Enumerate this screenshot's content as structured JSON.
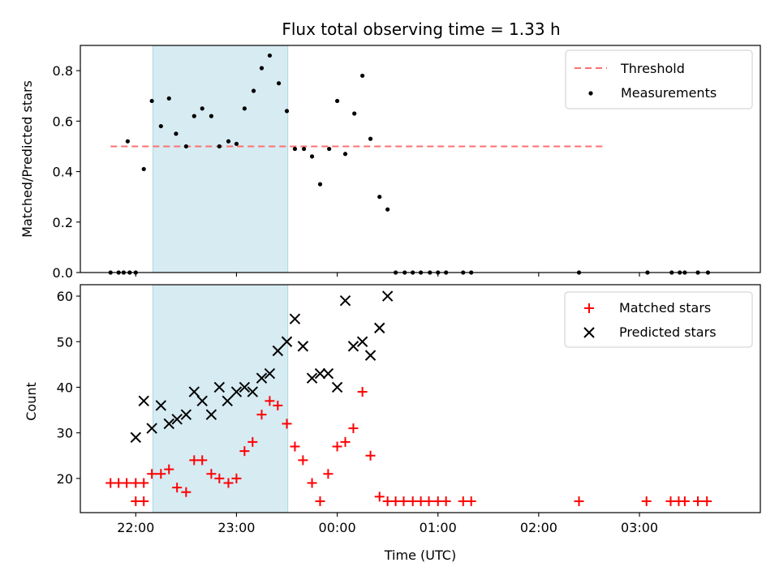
{
  "chart_data": [
    {
      "type": "scatter",
      "title": "Flux total observing time = 1.33 h",
      "ylabel": "Matched/Predicted stars",
      "ylim": [
        0,
        0.9
      ],
      "xlim": [
        21.45,
        28.2
      ],
      "x_ticks": [
        22,
        23,
        24,
        25,
        26,
        27
      ],
      "x_tick_labels": [
        "",
        "",
        "",
        "",
        "",
        ""
      ],
      "y_ticks": [
        0,
        0.2,
        0.4,
        0.6,
        0.8
      ],
      "y_tick_labels": [
        "0.0",
        "0.2",
        "0.4",
        "0.6",
        "0.8"
      ],
      "shaded_region": {
        "x": [
          22.17,
          23.51
        ],
        "color": "#add8e6"
      },
      "legend_position": "top-right",
      "threshold": {
        "name": "Threshold",
        "y": 0.5,
        "x": [
          21.75,
          26.65
        ],
        "color": "#ff7070",
        "style": "dashed"
      },
      "series": [
        {
          "name": "Measurements",
          "marker": "dot",
          "color": "#000000",
          "x": [
            21.75,
            21.83,
            21.88,
            21.94,
            22.0,
            21.92,
            22.08,
            22.16,
            22.25,
            22.33,
            22.4,
            22.5,
            22.58,
            22.66,
            22.75,
            22.83,
            22.92,
            23.0,
            23.08,
            23.17,
            23.25,
            23.33,
            23.42,
            23.5,
            23.58,
            23.67,
            23.75,
            23.83,
            23.92,
            24.0,
            24.08,
            24.17,
            24.25,
            24.33,
            24.42,
            24.5,
            24.58,
            24.67,
            24.75,
            24.83,
            24.92,
            25.0,
            25.08,
            25.25,
            25.33,
            26.4,
            27.08,
            27.32,
            27.4,
            27.45,
            27.58,
            27.68
          ],
          "y": [
            0,
            0,
            0,
            0,
            0,
            0.52,
            0.41,
            0.68,
            0.58,
            0.69,
            0.55,
            0.5,
            0.62,
            0.65,
            0.62,
            0.5,
            0.52,
            0.51,
            0.65,
            0.72,
            0.81,
            0.86,
            0.75,
            0.64,
            0.49,
            0.49,
            0.46,
            0.35,
            0.49,
            0.68,
            0.47,
            0.63,
            0.78,
            0.53,
            0.3,
            0.25,
            0,
            0,
            0,
            0,
            0,
            0,
            0,
            0,
            0,
            0,
            0,
            0,
            0,
            0,
            0,
            0
          ]
        }
      ]
    },
    {
      "type": "scatter",
      "xlabel": "Time (UTC)",
      "ylabel": "Count",
      "ylim": [
        12.5,
        62.5
      ],
      "xlim": [
        21.45,
        28.2
      ],
      "x_ticks": [
        22,
        23,
        24,
        25,
        26,
        27
      ],
      "x_tick_labels": [
        "22:00",
        "23:00",
        "00:00",
        "01:00",
        "02:00",
        "03:00"
      ],
      "y_ticks": [
        20,
        30,
        40,
        50,
        60
      ],
      "y_tick_labels": [
        "20",
        "30",
        "40",
        "50",
        "60"
      ],
      "shaded_region": {
        "x": [
          22.17,
          23.51
        ],
        "color": "#add8e6"
      },
      "legend_position": "top-right",
      "series": [
        {
          "name": "Matched stars",
          "marker": "plus",
          "color": "#ff0000",
          "x": [
            21.75,
            21.83,
            21.91,
            22.0,
            22.08,
            22.0,
            22.08,
            22.16,
            22.25,
            22.33,
            22.41,
            22.5,
            22.58,
            22.66,
            22.75,
            22.83,
            22.92,
            23.0,
            23.08,
            23.16,
            23.25,
            23.33,
            23.41,
            23.5,
            23.58,
            23.66,
            23.75,
            23.83,
            23.91,
            24.0,
            24.08,
            24.16,
            24.25,
            24.33,
            24.42,
            24.5,
            24.58,
            24.66,
            24.75,
            24.83,
            24.91,
            25.0,
            25.08,
            25.25,
            25.33,
            26.4,
            27.07,
            27.31,
            27.39,
            27.45,
            27.58,
            27.67
          ],
          "y": [
            19,
            19,
            19,
            19,
            19,
            15,
            15,
            21,
            21,
            22,
            18,
            17,
            24,
            24,
            21,
            20,
            19,
            20,
            26,
            28,
            34,
            37,
            36,
            32,
            27,
            24,
            19,
            15,
            21,
            27,
            28,
            31,
            39,
            25,
            16,
            15,
            15,
            15,
            15,
            15,
            15,
            15,
            15,
            15,
            15,
            15,
            15,
            15,
            15,
            15,
            15,
            15
          ]
        },
        {
          "name": "Predicted stars",
          "marker": "cross",
          "color": "#000000",
          "x": [
            22.0,
            22.08,
            22.16,
            22.25,
            22.33,
            22.41,
            22.5,
            22.58,
            22.66,
            22.75,
            22.83,
            22.91,
            23.0,
            23.08,
            23.16,
            23.25,
            23.33,
            23.41,
            23.5,
            23.58,
            23.66,
            23.75,
            23.83,
            23.91,
            24.0,
            24.08,
            24.16,
            24.25,
            24.33,
            24.42,
            24.5
          ],
          "y": [
            29,
            37,
            31,
            36,
            32,
            33,
            34,
            39,
            37,
            34,
            40,
            37,
            39,
            40,
            39,
            42,
            43,
            48,
            50,
            55,
            49,
            42,
            43,
            43,
            40,
            59,
            49,
            50,
            47,
            53,
            60
          ]
        }
      ]
    }
  ]
}
